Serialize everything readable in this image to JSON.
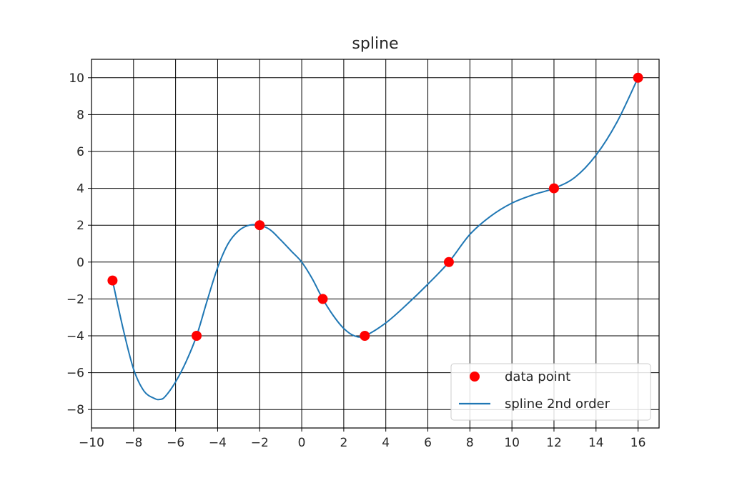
{
  "chart_data": {
    "type": "line",
    "title": "spline",
    "xlabel": "",
    "ylabel": "",
    "xlim": [
      -10,
      17
    ],
    "ylim": [
      -9,
      11
    ],
    "xticks": [
      -10,
      -8,
      -6,
      -4,
      -2,
      0,
      2,
      4,
      6,
      8,
      10,
      12,
      14,
      16
    ],
    "yticks": [
      -8,
      -6,
      -4,
      -2,
      0,
      2,
      4,
      6,
      8,
      10
    ],
    "grid": true,
    "legend_position": "bottom-right",
    "series": [
      {
        "name": "data point",
        "type": "scatter",
        "color": "#ff0000",
        "x": [
          -9,
          -5,
          -2,
          1,
          3,
          7,
          12,
          16
        ],
        "y": [
          -1,
          -4,
          2,
          -2,
          -4,
          0,
          4,
          10
        ]
      },
      {
        "name": "spline 2nd order",
        "type": "line",
        "color": "#1f77b4",
        "x": [
          -9,
          -8.5,
          -8,
          -7.5,
          -7,
          -6.75,
          -6.5,
          -6,
          -5.5,
          -5,
          -4.5,
          -4,
          -3.5,
          -3,
          -2.5,
          -2,
          -1.5,
          -1,
          -0.5,
          0,
          0.5,
          1,
          1.5,
          2,
          2.5,
          3,
          4,
          5,
          6,
          7,
          8,
          9,
          10,
          11,
          12,
          13,
          14,
          15,
          16
        ],
        "y": [
          -1,
          -3.6,
          -5.8,
          -7.0,
          -7.4,
          -7.45,
          -7.3,
          -6.5,
          -5.4,
          -4,
          -2.1,
          -0.3,
          1.0,
          1.7,
          2.0,
          2.0,
          1.75,
          1.2,
          0.6,
          0,
          -0.9,
          -2,
          -2.9,
          -3.6,
          -4.0,
          -4.0,
          -3.3,
          -2.3,
          -1.2,
          0,
          1.5,
          2.5,
          3.2,
          3.65,
          4,
          4.6,
          5.8,
          7.6,
          10
        ]
      }
    ]
  }
}
